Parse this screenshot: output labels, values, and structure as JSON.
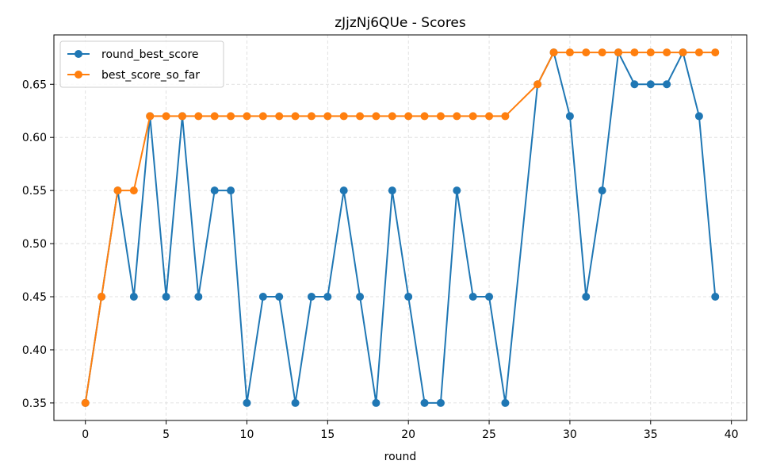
{
  "chart_data": {
    "type": "line",
    "title": "zJjzNj6QUe - Scores",
    "xlabel": "round",
    "ylabel": "",
    "xlim": [
      -1.95,
      40.95
    ],
    "ylim": [
      0.3335,
      0.6965
    ],
    "xticks": [
      0,
      5,
      10,
      15,
      20,
      25,
      30,
      35,
      40
    ],
    "yticks": [
      0.35,
      0.4,
      0.45,
      0.5,
      0.55,
      0.6,
      0.65
    ],
    "ytick_labels": [
      "0.35",
      "0.40",
      "0.45",
      "0.50",
      "0.55",
      "0.60",
      "0.65"
    ],
    "grid": true,
    "legend_position": "top-left",
    "series": [
      {
        "name": "round_best_score",
        "color": "#1f77b4",
        "marker": "circle",
        "x": [
          0,
          1,
          2,
          3,
          4,
          5,
          6,
          7,
          8,
          9,
          10,
          11,
          12,
          13,
          14,
          15,
          16,
          17,
          18,
          19,
          20,
          21,
          22,
          23,
          24,
          25,
          26,
          28,
          29,
          30,
          31,
          32,
          33,
          34,
          35,
          36,
          37,
          38,
          39
        ],
        "values": [
          0.35,
          0.45,
          0.55,
          0.45,
          0.62,
          0.45,
          0.62,
          0.45,
          0.55,
          0.55,
          0.35,
          0.45,
          0.45,
          0.35,
          0.45,
          0.45,
          0.55,
          0.45,
          0.35,
          0.55,
          0.45,
          0.35,
          0.35,
          0.55,
          0.45,
          0.45,
          0.35,
          0.65,
          0.68,
          0.62,
          0.45,
          0.55,
          0.68,
          0.65,
          0.65,
          0.65,
          0.68,
          0.62,
          0.45
        ]
      },
      {
        "name": "best_score_so_far",
        "color": "#ff7f0e",
        "marker": "circle",
        "x": [
          0,
          1,
          2,
          3,
          4,
          5,
          6,
          7,
          8,
          9,
          10,
          11,
          12,
          13,
          14,
          15,
          16,
          17,
          18,
          19,
          20,
          21,
          22,
          23,
          24,
          25,
          26,
          28,
          29,
          30,
          31,
          32,
          33,
          34,
          35,
          36,
          37,
          38,
          39
        ],
        "values": [
          0.35,
          0.45,
          0.55,
          0.55,
          0.62,
          0.62,
          0.62,
          0.62,
          0.62,
          0.62,
          0.62,
          0.62,
          0.62,
          0.62,
          0.62,
          0.62,
          0.62,
          0.62,
          0.62,
          0.62,
          0.62,
          0.62,
          0.62,
          0.62,
          0.62,
          0.62,
          0.62,
          0.65,
          0.68,
          0.68,
          0.68,
          0.68,
          0.68,
          0.68,
          0.68,
          0.68,
          0.68,
          0.68,
          0.68
        ]
      }
    ]
  }
}
